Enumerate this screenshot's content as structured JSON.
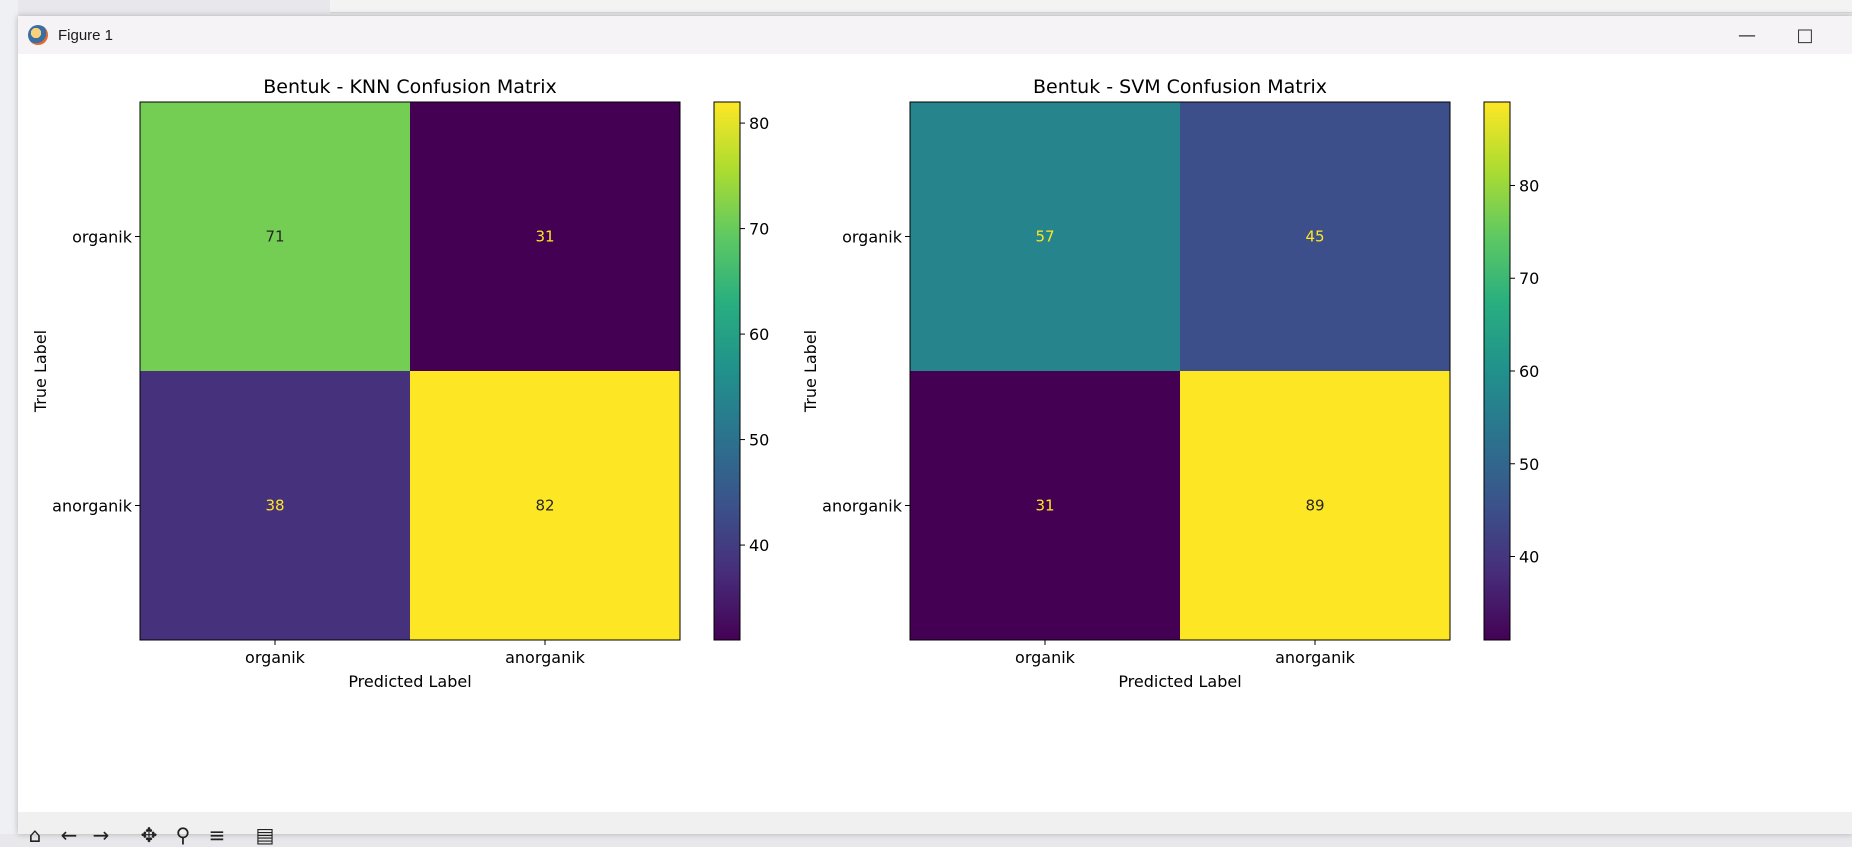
{
  "window": {
    "title": "Figure 1"
  },
  "toolbar": {
    "icons": [
      "home-icon",
      "back-icon",
      "forward-icon",
      "pan-icon",
      "zoom-icon",
      "configure-icon",
      "save-icon"
    ]
  },
  "chart_data": [
    {
      "type": "heatmap",
      "title": "Bentuk - KNN Confusion Matrix",
      "xlabel": "Predicted Label",
      "ylabel": "True Label",
      "x_categories": [
        "organik",
        "anorganik"
      ],
      "y_categories": [
        "organik",
        "anorganik"
      ],
      "values": [
        [
          71,
          31
        ],
        [
          38,
          82
        ]
      ],
      "colormap": "viridis",
      "colorbar_range": [
        31,
        82
      ],
      "colorbar_ticks": [
        40,
        50,
        60,
        70,
        80
      ]
    },
    {
      "type": "heatmap",
      "title": "Bentuk - SVM Confusion Matrix",
      "xlabel": "Predicted Label",
      "ylabel": "True Label",
      "x_categories": [
        "organik",
        "anorganik"
      ],
      "y_categories": [
        "organik",
        "anorganik"
      ],
      "values": [
        [
          57,
          45
        ],
        [
          31,
          89
        ]
      ],
      "colormap": "viridis",
      "colorbar_range": [
        31,
        89
      ],
      "colorbar_ticks": [
        40,
        50,
        60,
        70,
        80
      ]
    }
  ]
}
